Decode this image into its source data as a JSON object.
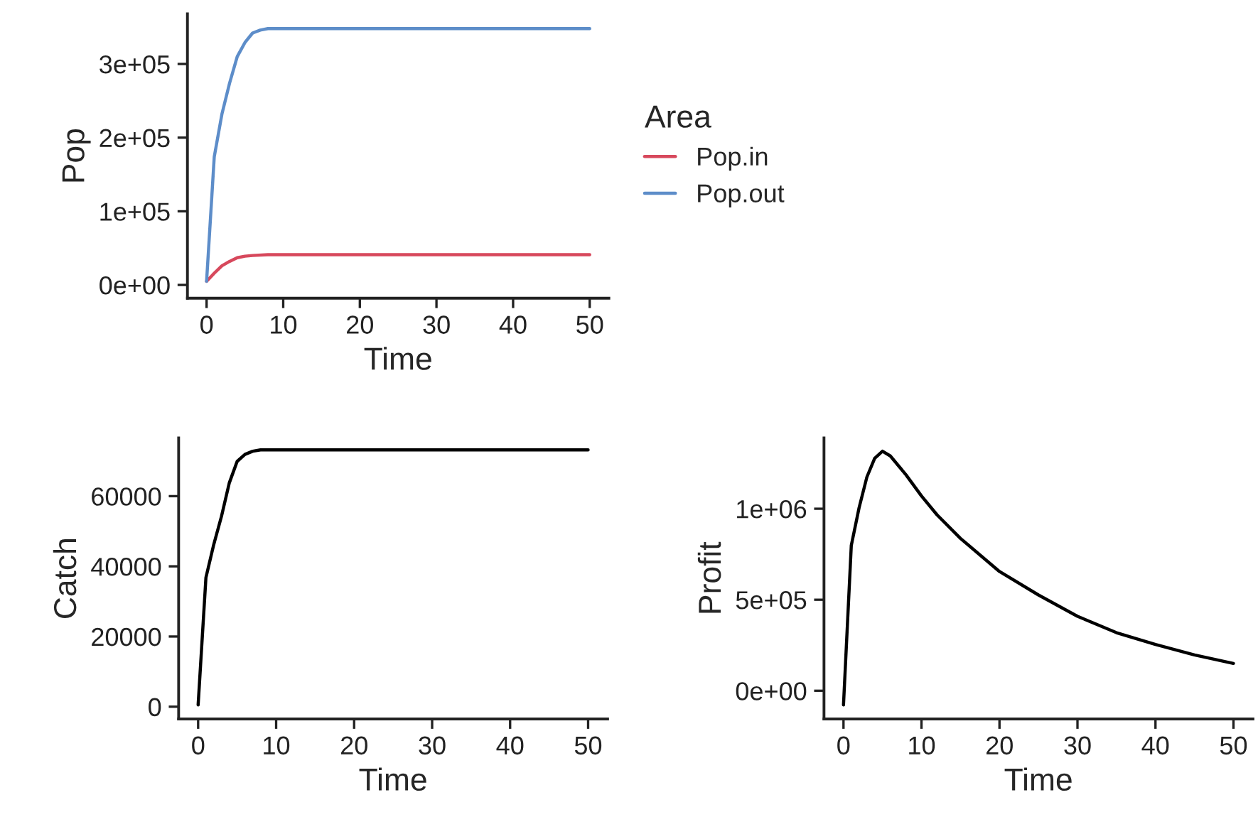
{
  "chart_data": [
    {
      "type": "line",
      "xlabel": "Time",
      "ylabel": "Pop",
      "legend_title": "Area",
      "legend": "right",
      "grid": false,
      "xlim": [
        -2.5,
        52.5
      ],
      "xticks": [
        0,
        10,
        20,
        30,
        40,
        50
      ],
      "ylim": [
        -18000,
        368000
      ],
      "yticks": [
        {
          "value": 0,
          "label": "0e+00"
        },
        {
          "value": 100000,
          "label": "1e+05"
        },
        {
          "value": 200000,
          "label": "2e+05"
        },
        {
          "value": 300000,
          "label": "3e+05"
        }
      ],
      "series": [
        {
          "name": "Pop.in",
          "color": "#d7485c",
          "x": [
            0,
            1,
            2,
            3,
            4,
            5,
            6,
            8,
            50
          ],
          "values": [
            5000,
            16000,
            26000,
            32000,
            37000,
            39000,
            40000,
            41000,
            41000
          ]
        },
        {
          "name": "Pop.out",
          "color": "#5d8dc9",
          "x": [
            0,
            1,
            2,
            3,
            4,
            5,
            6,
            7,
            8,
            50
          ],
          "values": [
            5000,
            174000,
            232000,
            274000,
            310000,
            329000,
            342000,
            346000,
            348000,
            348000
          ]
        }
      ]
    },
    {
      "type": "line",
      "xlabel": "Time",
      "ylabel": "Catch",
      "grid": false,
      "xlim": [
        -2.5,
        52.5
      ],
      "xticks": [
        0,
        10,
        20,
        30,
        40,
        50
      ],
      "ylim": [
        -3500,
        76600
      ],
      "yticks": [
        0,
        20000,
        40000,
        60000
      ],
      "series": [
        {
          "color": "#000000",
          "x": [
            0,
            1,
            2,
            3,
            4,
            5,
            6,
            7,
            8,
            50
          ],
          "values": [
            500,
            36800,
            46200,
            54300,
            63800,
            69900,
            71900,
            72800,
            73200,
            73200
          ]
        }
      ]
    },
    {
      "type": "line",
      "xlabel": "Time",
      "ylabel": "Profit",
      "grid": false,
      "xlim": [
        -2.5,
        52.5
      ],
      "xticks": [
        0,
        10,
        20,
        30,
        40,
        50
      ],
      "ylim": [
        -155000,
        1389000
      ],
      "yticks": [
        {
          "value": 0,
          "label": "0e+00"
        },
        {
          "value": 500000,
          "label": "5e+05"
        },
        {
          "value": 1000000,
          "label": "1e+06"
        }
      ],
      "series": [
        {
          "color": "#000000",
          "x": [
            0,
            1,
            2,
            3,
            4,
            5,
            6,
            8,
            10,
            12,
            15,
            20,
            25,
            30,
            35,
            40,
            45,
            50
          ],
          "values": [
            -78000,
            798000,
            1005000,
            1174000,
            1277000,
            1316000,
            1290000,
            1187000,
            1070000,
            966000,
            837000,
            655000,
            526000,
            409000,
            319000,
            254000,
            197000,
            150000
          ]
        }
      ]
    }
  ]
}
